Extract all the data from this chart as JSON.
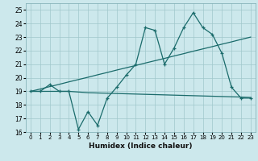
{
  "xlabel": "Humidex (Indice chaleur)",
  "background_color": "#cce8ec",
  "grid_color": "#a0c8cc",
  "line_color": "#1a6b6b",
  "x_values": [
    0,
    1,
    2,
    3,
    4,
    5,
    6,
    7,
    8,
    9,
    10,
    11,
    12,
    13,
    14,
    15,
    16,
    17,
    18,
    19,
    20,
    21,
    22,
    23
  ],
  "series_main": [
    19,
    19,
    19.5,
    19,
    19,
    16.2,
    17.5,
    16.5,
    18.5,
    19.3,
    20.2,
    21.0,
    23.7,
    23.5,
    21.0,
    22.2,
    23.7,
    24.8,
    23.7,
    23.2,
    21.8,
    19.3,
    18.5,
    18.5
  ],
  "series_trend1": [
    19.0,
    19.17,
    19.35,
    19.52,
    19.7,
    19.87,
    20.04,
    20.22,
    20.39,
    20.57,
    20.74,
    20.91,
    21.09,
    21.26,
    21.43,
    21.61,
    21.78,
    21.96,
    22.13,
    22.3,
    22.48,
    22.65,
    22.83,
    23.0
  ],
  "series_flat": [
    19.0,
    19.0,
    19.0,
    19.0,
    19.0,
    18.95,
    18.9,
    18.88,
    18.86,
    18.84,
    18.82,
    18.8,
    18.78,
    18.76,
    18.74,
    18.72,
    18.7,
    18.68,
    18.66,
    18.64,
    18.62,
    18.6,
    18.58,
    18.55
  ],
  "ylim": [
    16,
    25.5
  ],
  "xlim": [
    -0.5,
    23.5
  ],
  "yticks": [
    16,
    17,
    18,
    19,
    20,
    21,
    22,
    23,
    24,
    25
  ],
  "xticks": [
    0,
    1,
    2,
    3,
    4,
    5,
    6,
    7,
    8,
    9,
    10,
    11,
    12,
    13,
    14,
    15,
    16,
    17,
    18,
    19,
    20,
    21,
    22,
    23
  ]
}
